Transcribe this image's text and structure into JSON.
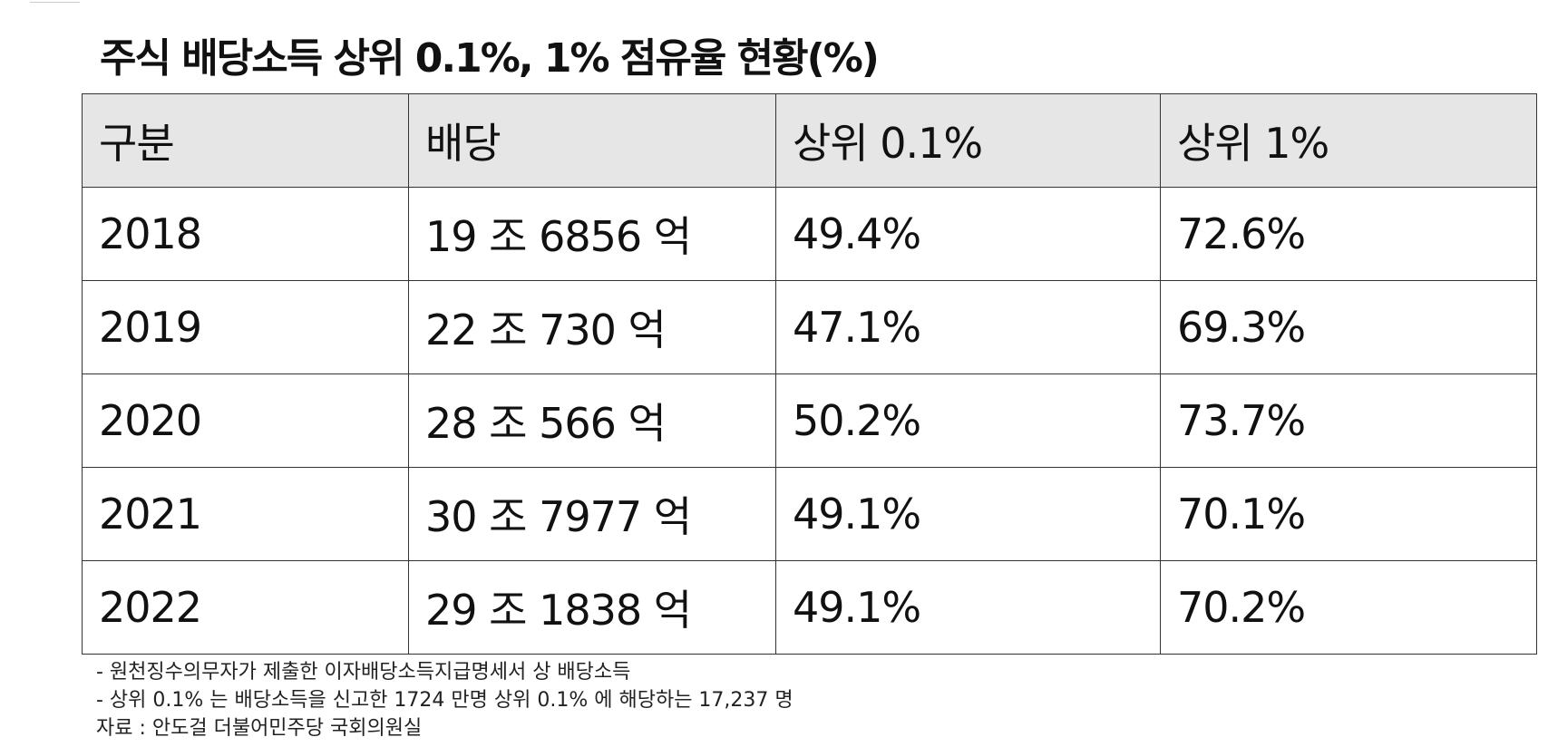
{
  "header": {
    "title": "주식 배당소득 상위 0.1%,  1% 점유율 현황(%)"
  },
  "table": {
    "columns": [
      "구분",
      "배당",
      "상위 0.1%",
      "상위 1%"
    ],
    "rows": [
      [
        "2018",
        "19 조 6856 억",
        "49.4%",
        "72.6%"
      ],
      [
        "2019",
        "22 조 730 억",
        "47.1%",
        "69.3%"
      ],
      [
        "2020",
        "28 조 566 억",
        "50.2%",
        "73.7%"
      ],
      [
        "2021",
        "30 조 7977 억",
        "49.1%",
        "70.1%"
      ],
      [
        "2022",
        "29 조 1838 억",
        "49.1%",
        "70.2%"
      ]
    ]
  },
  "notes": [
    "- 원천징수의무자가 제출한 이자배당소득지급명세서 상 배당소득",
    "- 상위 0.1% 는 배당소득을 신고한 1724 만명 상위 0.1% 에 해당하는 17,237 명",
    "자료 : 안도걸 더불어민주당 국회의원실"
  ]
}
